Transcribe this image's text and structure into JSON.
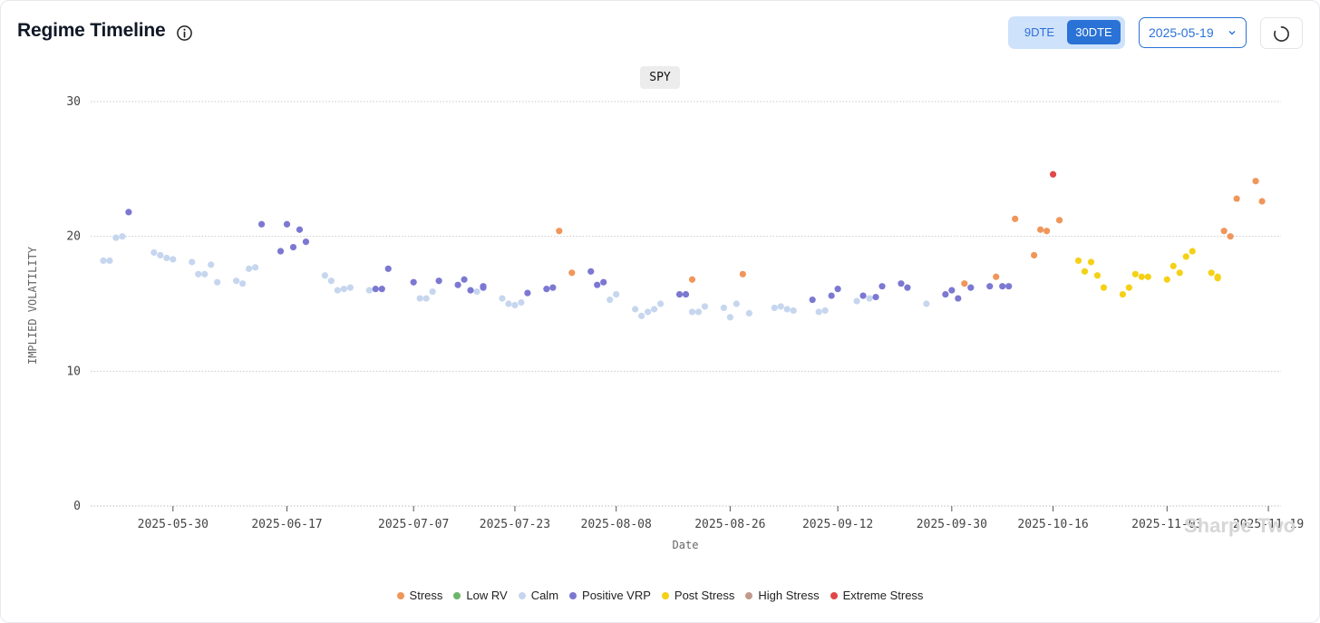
{
  "header": {
    "title": "Regime Timeline",
    "dte_options": [
      "9DTE",
      "30DTE"
    ],
    "dte_selected": "30DTE",
    "date_value": "2025-05-19",
    "ticker": "SPY"
  },
  "icons": {
    "info": "info-icon",
    "chevron": "chevron-down-icon",
    "refresh": "loading-spinner-icon"
  },
  "watermark": "Sharpe Two",
  "colors": {
    "Stress": "#f0965a",
    "Low RV": "#6cb56a",
    "Calm": "#c6d6ee",
    "Positive VRP": "#7c78d2",
    "Post Stress": "#f4d116",
    "High Stress": "#c09a8a",
    "Extreme Stress": "#e04848",
    "accent": "#2a72d6"
  },
  "chart_data": {
    "type": "scatter",
    "xlabel": "Date",
    "ylabel": "IMPLIED VOLATILITY",
    "ylim": [
      0,
      30
    ],
    "yticks": [
      0,
      10,
      20,
      30
    ],
    "x_ticks": [
      "2025-05-30",
      "2025-06-17",
      "2025-07-07",
      "2025-07-23",
      "2025-08-08",
      "2025-08-26",
      "2025-09-12",
      "2025-09-30",
      "2025-10-16",
      "2025-11-03",
      "2025-11-19"
    ],
    "legend": [
      "Stress",
      "Low RV",
      "Calm",
      "Positive VRP",
      "Post Stress",
      "High Stress",
      "Extreme Stress"
    ],
    "legend_position": "bottom",
    "grid": true,
    "series": [
      {
        "name": "Calm",
        "points": [
          [
            "2025-05-19",
            18.2
          ],
          [
            "2025-05-20",
            18.2
          ],
          [
            "2025-05-21",
            19.9
          ],
          [
            "2025-05-22",
            20.0
          ],
          [
            "2025-05-27",
            18.8
          ],
          [
            "2025-05-28",
            18.6
          ],
          [
            "2025-05-29",
            18.4
          ],
          [
            "2025-05-30",
            18.3
          ],
          [
            "2025-06-02",
            18.1
          ],
          [
            "2025-06-03",
            17.2
          ],
          [
            "2025-06-04",
            17.2
          ],
          [
            "2025-06-05",
            17.9
          ],
          [
            "2025-06-06",
            16.6
          ],
          [
            "2025-06-09",
            16.7
          ],
          [
            "2025-06-10",
            16.5
          ],
          [
            "2025-06-11",
            17.6
          ],
          [
            "2025-06-12",
            17.7
          ],
          [
            "2025-06-23",
            17.1
          ],
          [
            "2025-06-24",
            16.7
          ],
          [
            "2025-06-25",
            16.0
          ],
          [
            "2025-06-26",
            16.1
          ],
          [
            "2025-06-27",
            16.2
          ],
          [
            "2025-06-30",
            16.0
          ],
          [
            "2025-07-08",
            15.4
          ],
          [
            "2025-07-09",
            15.4
          ],
          [
            "2025-07-10",
            15.9
          ],
          [
            "2025-07-17",
            15.9
          ],
          [
            "2025-07-21",
            15.4
          ],
          [
            "2025-07-22",
            15.0
          ],
          [
            "2025-07-23",
            14.9
          ],
          [
            "2025-07-24",
            15.1
          ],
          [
            "2025-08-07",
            15.3
          ],
          [
            "2025-08-08",
            15.7
          ],
          [
            "2025-08-11",
            14.6
          ],
          [
            "2025-08-12",
            14.1
          ],
          [
            "2025-08-13",
            14.4
          ],
          [
            "2025-08-14",
            14.6
          ],
          [
            "2025-08-15",
            15.0
          ],
          [
            "2025-08-20",
            14.4
          ],
          [
            "2025-08-21",
            14.4
          ],
          [
            "2025-08-22",
            14.8
          ],
          [
            "2025-08-25",
            14.7
          ],
          [
            "2025-08-26",
            14.0
          ],
          [
            "2025-08-27",
            15.0
          ],
          [
            "2025-08-29",
            14.3
          ],
          [
            "2025-09-02",
            14.7
          ],
          [
            "2025-09-03",
            14.8
          ],
          [
            "2025-09-04",
            14.6
          ],
          [
            "2025-09-05",
            14.5
          ],
          [
            "2025-09-09",
            14.4
          ],
          [
            "2025-09-10",
            14.5
          ],
          [
            "2025-09-15",
            15.2
          ],
          [
            "2025-09-17",
            15.4
          ],
          [
            "2025-09-26",
            15.0
          ]
        ]
      },
      {
        "name": "Positive VRP",
        "points": [
          [
            "2025-05-23",
            21.8
          ],
          [
            "2025-06-13",
            20.9
          ],
          [
            "2025-06-16",
            18.9
          ],
          [
            "2025-06-17",
            20.9
          ],
          [
            "2025-06-18",
            19.2
          ],
          [
            "2025-06-19",
            20.5
          ],
          [
            "2025-06-20",
            19.6
          ],
          [
            "2025-07-01",
            16.1
          ],
          [
            "2025-07-02",
            16.1
          ],
          [
            "2025-07-03",
            17.6
          ],
          [
            "2025-07-07",
            16.6
          ],
          [
            "2025-07-11",
            16.7
          ],
          [
            "2025-07-14",
            16.4
          ],
          [
            "2025-07-15",
            16.8
          ],
          [
            "2025-07-16",
            16.0
          ],
          [
            "2025-07-18",
            16.3
          ],
          [
            "2025-07-18",
            16.2
          ],
          [
            "2025-07-25",
            15.8
          ],
          [
            "2025-07-28",
            16.1
          ],
          [
            "2025-07-29",
            16.2
          ],
          [
            "2025-08-04",
            17.4
          ],
          [
            "2025-08-05",
            16.4
          ],
          [
            "2025-08-06",
            16.6
          ],
          [
            "2025-08-18",
            15.7
          ],
          [
            "2025-08-19",
            15.7
          ],
          [
            "2025-09-08",
            15.3
          ],
          [
            "2025-09-11",
            15.6
          ],
          [
            "2025-09-12",
            16.1
          ],
          [
            "2025-09-16",
            15.6
          ],
          [
            "2025-09-18",
            15.5
          ],
          [
            "2025-09-19",
            16.3
          ],
          [
            "2025-09-22",
            16.5
          ],
          [
            "2025-09-23",
            16.2
          ],
          [
            "2025-09-29",
            15.7
          ],
          [
            "2025-09-30",
            16.0
          ],
          [
            "2025-10-01",
            15.4
          ],
          [
            "2025-10-03",
            16.2
          ],
          [
            "2025-10-06",
            16.3
          ],
          [
            "2025-10-08",
            16.3
          ],
          [
            "2025-10-09",
            16.3
          ]
        ]
      },
      {
        "name": "Stress",
        "points": [
          [
            "2025-07-30",
            20.4
          ],
          [
            "2025-08-01",
            17.3
          ],
          [
            "2025-08-20",
            16.8
          ],
          [
            "2025-08-28",
            17.2
          ],
          [
            "2025-10-02",
            16.5
          ],
          [
            "2025-10-07",
            17.0
          ],
          [
            "2025-10-10",
            21.3
          ],
          [
            "2025-10-13",
            18.6
          ],
          [
            "2025-10-14",
            20.5
          ],
          [
            "2025-10-15",
            20.4
          ],
          [
            "2025-10-17",
            21.2
          ],
          [
            "2025-11-12",
            20.4
          ],
          [
            "2025-11-13",
            20.0
          ],
          [
            "2025-11-14",
            22.8
          ],
          [
            "2025-11-17",
            24.1
          ],
          [
            "2025-11-18",
            22.6
          ]
        ]
      },
      {
        "name": "Extreme Stress",
        "points": [
          [
            "2025-10-16",
            24.6
          ]
        ]
      },
      {
        "name": "Post Stress",
        "points": [
          [
            "2025-10-20",
            18.2
          ],
          [
            "2025-10-21",
            17.4
          ],
          [
            "2025-10-22",
            18.1
          ],
          [
            "2025-10-23",
            17.1
          ],
          [
            "2025-10-24",
            16.2
          ],
          [
            "2025-10-27",
            15.7
          ],
          [
            "2025-10-28",
            16.2
          ],
          [
            "2025-10-29",
            17.2
          ],
          [
            "2025-10-30",
            17.0
          ],
          [
            "2025-10-31",
            17.0
          ],
          [
            "2025-11-03",
            16.8
          ],
          [
            "2025-11-04",
            17.8
          ],
          [
            "2025-11-05",
            17.3
          ],
          [
            "2025-11-06",
            18.5
          ],
          [
            "2025-11-07",
            18.9
          ],
          [
            "2025-11-10",
            17.3
          ],
          [
            "2025-11-11",
            16.9
          ],
          [
            "2025-11-11",
            17.0
          ]
        ]
      }
    ]
  }
}
